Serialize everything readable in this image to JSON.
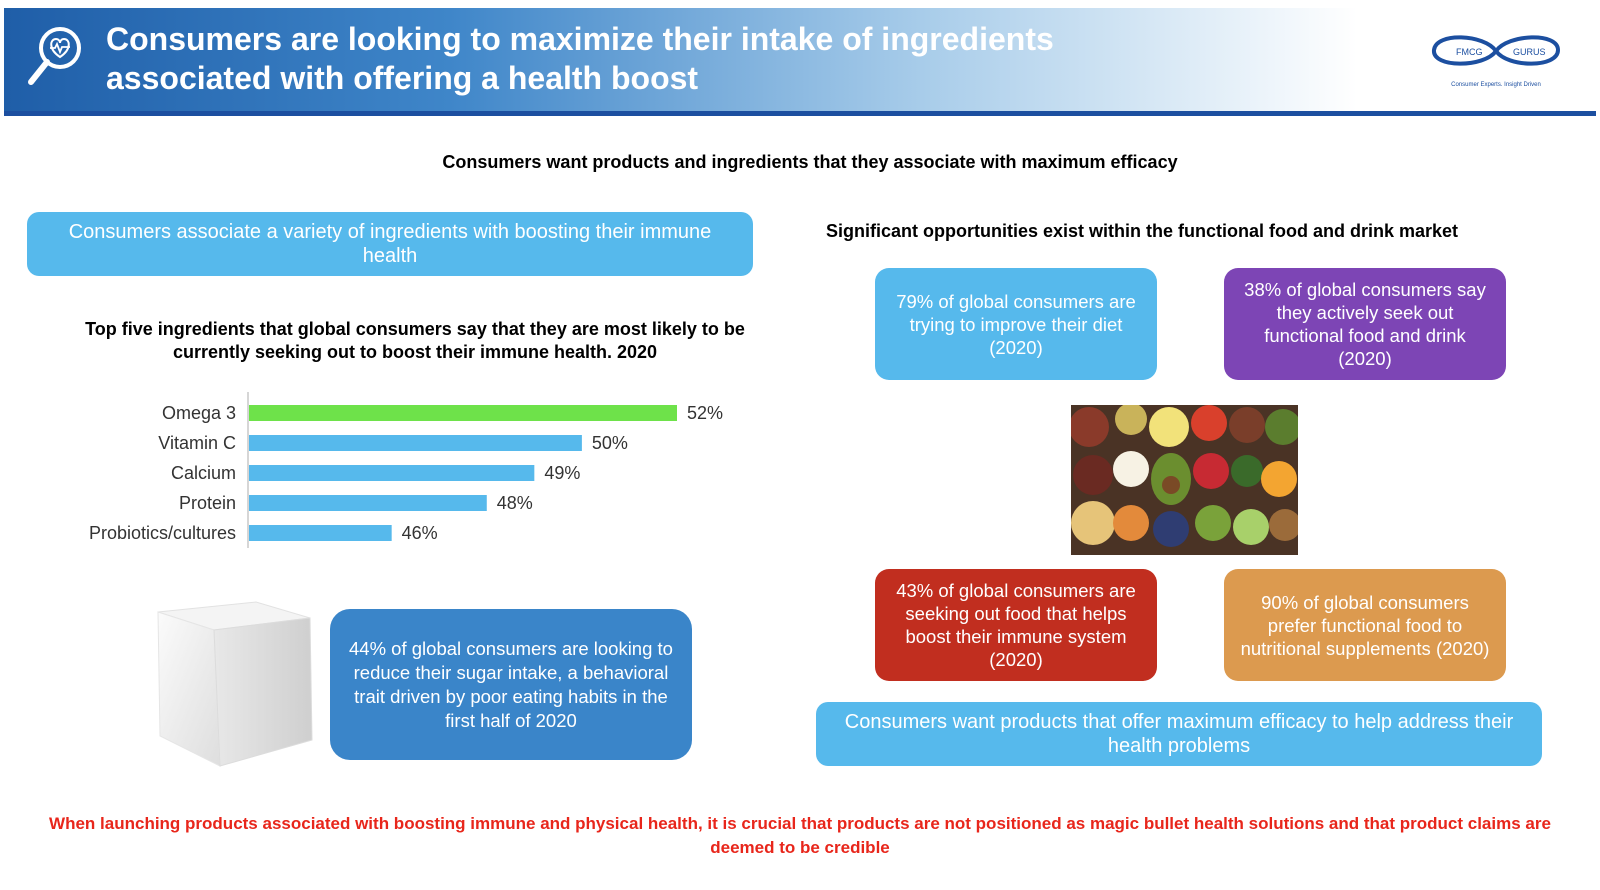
{
  "header": {
    "title": "Consumers are looking to maximize their intake of ingredients associated with offering a health boost",
    "icon": "search-heart-icon",
    "logo": {
      "left_text": "FMCG",
      "right_text": "GURUS",
      "tagline": "Consumer Experts. Insight Driven"
    }
  },
  "subtitle": "Consumers want products and ingredients that they associate with maximum efficacy",
  "left": {
    "immune_pill": "Consumers associate a variety of ingredients with boosting their immune health",
    "sugar_box": "44% of global consumers are looking to reduce their sugar intake, a behavioral trait driven by poor eating habits in the first half of 2020"
  },
  "chart_data": {
    "type": "bar",
    "orientation": "horizontal",
    "title": "Top five ingredients that global consumers say that they are most likely to be currently seeking out to boost their immune health. 2020",
    "categories": [
      "Omega 3",
      "Vitamin C",
      "Calcium",
      "Protein",
      "Probiotics/cultures"
    ],
    "values": [
      52,
      50,
      49,
      48,
      46
    ],
    "value_labels": [
      "52%",
      "50%",
      "49%",
      "48%",
      "46%"
    ],
    "unit": "%",
    "xlim": [
      43,
      52
    ],
    "colors": [
      "#6ee24a",
      "#56b9ec",
      "#56b9ec",
      "#56b9ec",
      "#56b9ec"
    ],
    "grid": false,
    "legend": "none"
  },
  "right": {
    "heading": "Significant opportunities exist within the functional food and drink market",
    "stats": [
      {
        "text": "79% of global consumers are trying to improve their diet (2020)",
        "color": "#56b9ec"
      },
      {
        "text": "38% of global consumers say they actively seek out functional food and drink (2020)",
        "color": "#7d45b5"
      },
      {
        "text": "43% of global consumers are seeking out food that helps boost their immune system (2020)",
        "color": "#c12e1f"
      },
      {
        "text": "90% of global consumers prefer functional food to nutritional supplements (2020)",
        "color": "#dc9a4f"
      }
    ],
    "efficacy_pill": "Consumers want products that offer maximum efficacy to help address their health problems"
  },
  "footer_note": "When  launching products associated with boosting immune and physical health, it is crucial that products are not positioned as magic bullet health solutions and that product claims are deemed to be credible"
}
